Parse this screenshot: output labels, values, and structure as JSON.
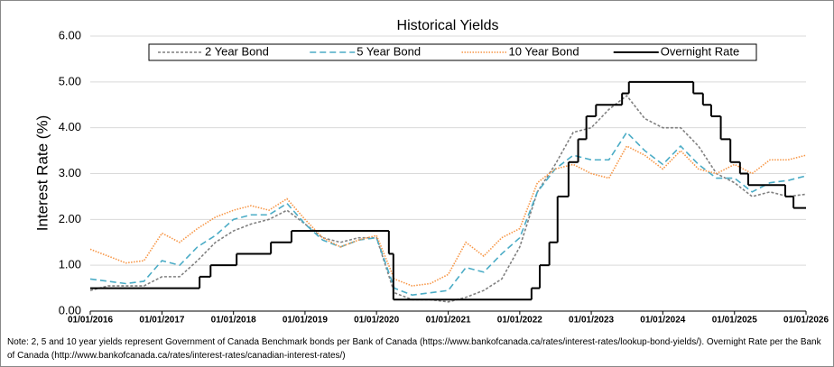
{
  "chart_data": {
    "type": "line",
    "title": "Historical Yields",
    "y_label": "Interest Rate (%)",
    "note": "Note: 2, 5 and 10 year yields represent Government of Canada Benchmark bonds per Bank of Canada (https://www.bankofcanada.ca/rates/interest-rates/lookup-bond-yields/). Overnight Rate per the Bank of Canada (http://www.bankofcanada.ca/rates/interest-rates/canadian-interest-rates/)",
    "xlim": [
      "01/01/2016",
      "01/01/2026"
    ],
    "xticks": [
      "01/01/2016",
      "01/01/2017",
      "01/01/2018",
      "01/01/2019",
      "01/01/2020",
      "01/01/2021",
      "01/01/2022",
      "01/01/2023",
      "01/01/2024",
      "01/01/2025",
      "01/01/2026"
    ],
    "ylim": [
      0,
      6
    ],
    "yticks": [
      {
        "value": 0,
        "label": "0.00"
      },
      {
        "value": 1,
        "label": "1.00"
      },
      {
        "value": 2,
        "label": "2.00"
      },
      {
        "value": 3,
        "label": "3.00"
      },
      {
        "value": 4,
        "label": "4.00"
      },
      {
        "value": 5,
        "label": "5.00"
      },
      {
        "value": 6,
        "label": "6.00"
      }
    ],
    "legend": "top",
    "x": [
      "01/01/2016",
      "01/04/2016",
      "01/07/2016",
      "01/10/2016",
      "01/01/2017",
      "01/04/2017",
      "01/07/2017",
      "01/10/2017",
      "01/01/2018",
      "01/04/2018",
      "01/07/2018",
      "01/10/2018",
      "01/01/2019",
      "01/04/2019",
      "01/07/2019",
      "01/10/2019",
      "01/01/2020",
      "01/04/2020",
      "01/07/2020",
      "01/10/2020",
      "01/01/2021",
      "01/04/2021",
      "01/07/2021",
      "01/10/2021",
      "01/01/2022",
      "01/04/2022",
      "01/07/2022",
      "01/10/2022",
      "01/01/2023",
      "01/04/2023",
      "01/07/2023",
      "01/10/2023",
      "01/01/2024",
      "01/04/2024",
      "01/07/2024",
      "01/10/2024",
      "01/01/2025",
      "01/04/2025",
      "01/07/2025",
      "01/10/2025",
      "01/01/2026"
    ],
    "series": [
      {
        "name": "2 Year Bond",
        "color": "#808080",
        "dash": "3,2",
        "values": [
          0.45,
          0.55,
          0.55,
          0.55,
          0.75,
          0.75,
          1.1,
          1.5,
          1.75,
          1.9,
          2.0,
          2.2,
          1.9,
          1.6,
          1.5,
          1.6,
          1.6,
          0.4,
          0.25,
          0.25,
          0.2,
          0.3,
          0.45,
          0.7,
          1.4,
          2.6,
          3.2,
          3.9,
          4.0,
          4.4,
          4.7,
          4.2,
          4.0,
          4.0,
          3.6,
          3.0,
          2.8,
          2.5,
          2.6,
          2.5,
          2.55
        ]
      },
      {
        "name": "5 Year Bond",
        "color": "#4bacc6",
        "dash": "7,4",
        "values": [
          0.7,
          0.65,
          0.6,
          0.65,
          1.1,
          1.0,
          1.4,
          1.65,
          2.0,
          2.1,
          2.1,
          2.35,
          1.9,
          1.55,
          1.4,
          1.55,
          1.6,
          0.5,
          0.35,
          0.4,
          0.45,
          0.95,
          0.85,
          1.25,
          1.6,
          2.6,
          3.1,
          3.4,
          3.3,
          3.3,
          3.9,
          3.5,
          3.2,
          3.6,
          3.2,
          2.9,
          2.9,
          2.6,
          2.8,
          2.85,
          2.95
        ]
      },
      {
        "name": "10 Year Bond",
        "color": "#f79646",
        "dash": "1.5,1.5",
        "values": [
          1.35,
          1.2,
          1.05,
          1.1,
          1.7,
          1.5,
          1.8,
          2.05,
          2.2,
          2.3,
          2.2,
          2.45,
          2.0,
          1.6,
          1.4,
          1.55,
          1.65,
          0.7,
          0.55,
          0.6,
          0.8,
          1.5,
          1.2,
          1.6,
          1.8,
          2.8,
          3.1,
          3.2,
          3.0,
          2.9,
          3.6,
          3.4,
          3.1,
          3.5,
          3.1,
          3.0,
          3.2,
          3.0,
          3.3,
          3.3,
          3.4
        ]
      },
      {
        "name": "Overnight Rate",
        "color": "#000000",
        "drawstyle": "steps-post",
        "x": [
          "01/01/2016",
          "12/07/2017",
          "06/09/2017",
          "17/01/2018",
          "11/07/2018",
          "24/10/2018",
          "04/03/2020",
          "27/03/2020",
          "02/03/2022",
          "13/04/2022",
          "01/06/2022",
          "13/07/2022",
          "07/09/2022",
          "26/10/2022",
          "07/12/2022",
          "25/01/2023",
          "07/06/2023",
          "12/07/2023",
          "05/06/2024",
          "24/07/2024",
          "04/09/2024",
          "23/10/2024",
          "11/12/2024",
          "29/01/2025",
          "12/03/2025",
          "17/09/2025",
          "29/10/2025",
          "01/01/2026"
        ],
        "values": [
          0.5,
          0.75,
          1.0,
          1.25,
          1.5,
          1.75,
          1.25,
          0.25,
          0.5,
          1.0,
          1.5,
          2.5,
          3.25,
          3.75,
          4.25,
          4.5,
          4.75,
          5.0,
          4.75,
          4.5,
          4.25,
          3.75,
          3.25,
          3.0,
          2.75,
          2.5,
          2.25,
          2.25
        ]
      }
    ]
  }
}
